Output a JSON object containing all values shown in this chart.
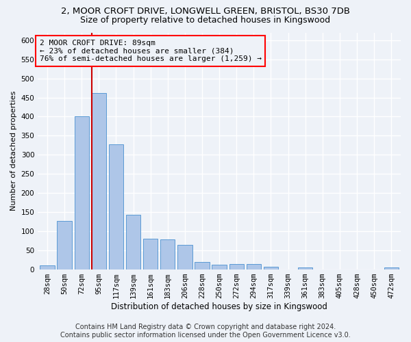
{
  "title_line1": "2, MOOR CROFT DRIVE, LONGWELL GREEN, BRISTOL, BS30 7DB",
  "title_line2": "Size of property relative to detached houses in Kingswood",
  "xlabel": "Distribution of detached houses by size in Kingswood",
  "ylabel": "Number of detached properties",
  "bar_labels": [
    "28sqm",
    "50sqm",
    "72sqm",
    "95sqm",
    "117sqm",
    "139sqm",
    "161sqm",
    "183sqm",
    "206sqm",
    "228sqm",
    "250sqm",
    "272sqm",
    "294sqm",
    "317sqm",
    "339sqm",
    "361sqm",
    "383sqm",
    "405sqm",
    "428sqm",
    "450sqm",
    "472sqm"
  ],
  "bar_values": [
    10,
    128,
    400,
    462,
    328,
    143,
    80,
    78,
    65,
    20,
    12,
    15,
    15,
    7,
    0,
    5,
    0,
    0,
    0,
    0,
    5
  ],
  "bar_color": "#aec6e8",
  "bar_edge_color": "#5b9bd5",
  "annotation_box_text": "2 MOOR CROFT DRIVE: 89sqm\n← 23% of detached houses are smaller (384)\n76% of semi-detached houses are larger (1,259) →",
  "vline_x_index": 3,
  "vline_color": "#cc0000",
  "ylim": [
    0,
    620
  ],
  "yticks": [
    0,
    50,
    100,
    150,
    200,
    250,
    300,
    350,
    400,
    450,
    500,
    550,
    600
  ],
  "footer_line1": "Contains HM Land Registry data © Crown copyright and database right 2024.",
  "footer_line2": "Contains public sector information licensed under the Open Government Licence v3.0.",
  "bg_color": "#eef2f8",
  "grid_color": "#ffffff",
  "title1_fontsize": 9.5,
  "title2_fontsize": 9,
  "annot_fontsize": 8,
  "footer_fontsize": 7,
  "ylabel_fontsize": 8,
  "xlabel_fontsize": 8.5,
  "tick_fontsize": 7.5
}
